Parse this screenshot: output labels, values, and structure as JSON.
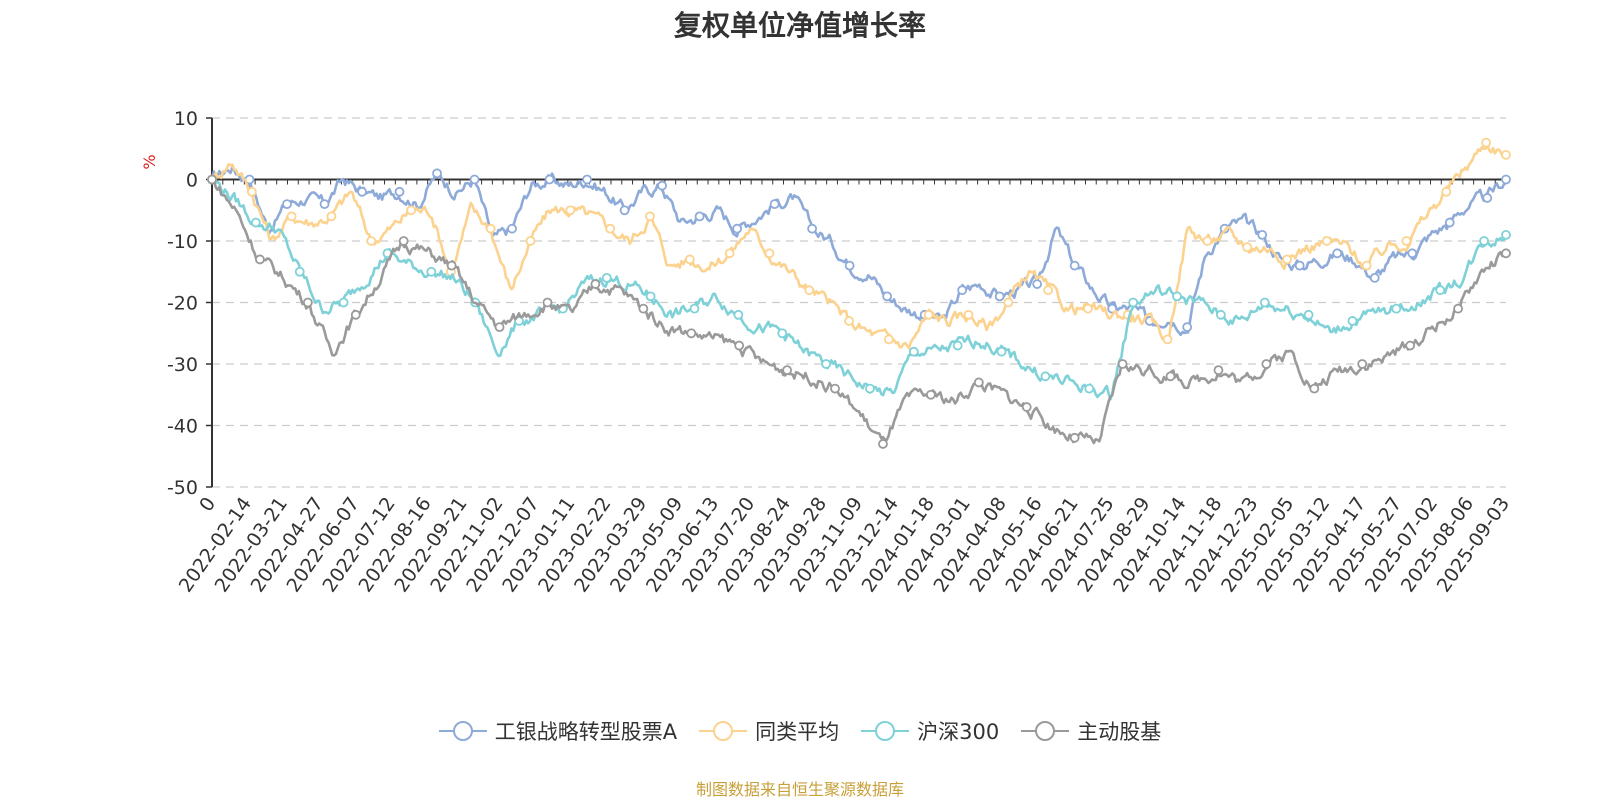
{
  "chart_data": {
    "type": "line",
    "title": "复权单位净值增长率",
    "ylabel": "%",
    "ylim": [
      -50,
      10
    ],
    "yticks": [
      10,
      0,
      -10,
      -20,
      -30,
      -40,
      -50
    ],
    "xlabels": [
      "0",
      "2022-02-14",
      "2022-03-21",
      "2022-04-27",
      "2022-06-07",
      "2022-07-12",
      "2022-08-16",
      "2022-09-21",
      "2022-11-02",
      "2022-12-07",
      "2023-01-11",
      "2023-02-22",
      "2023-03-29",
      "2023-05-09",
      "2023-06-13",
      "2023-07-20",
      "2023-08-24",
      "2023-09-28",
      "2023-11-09",
      "2023-12-14",
      "2024-01-18",
      "2024-03-01",
      "2024-04-08",
      "2024-05-16",
      "2024-06-21",
      "2024-07-25",
      "2024-08-29",
      "2024-10-14",
      "2024-11-18",
      "2024-12-23",
      "2025-02-05",
      "2025-03-12",
      "2025-04-17",
      "2025-05-27",
      "2025-07-02",
      "2025-08-06",
      "2025-09-03"
    ],
    "grid": true,
    "legend_position": "bottom",
    "series": [
      {
        "name": "工银战略转型股票A",
        "color": "#8eaad8",
        "values": [
          0,
          2,
          0,
          -8,
          -4,
          -3,
          -4,
          0,
          -2,
          -3,
          -2,
          -4,
          1,
          -2,
          0,
          -10,
          -8,
          -1,
          0,
          -1,
          0,
          -2,
          -5,
          -2,
          -1,
          -7,
          -6,
          -5,
          -8,
          -6,
          -4,
          -3,
          -8,
          -10,
          -14,
          -15,
          -19,
          -21,
          -22,
          -23,
          -18,
          -17,
          -19,
          -18,
          -17,
          -8,
          -14,
          -18,
          -21,
          -21,
          -23,
          -22,
          -24,
          -12,
          -8,
          -7,
          -9,
          -13,
          -14,
          -13,
          -12,
          -13,
          -16,
          -13,
          -12,
          -9,
          -7,
          -4,
          -3,
          0
        ]
      },
      {
        "name": "同类平均",
        "color": "#fcd28f",
        "values": [
          0,
          3,
          -2,
          -10,
          -6,
          -7,
          -6,
          -2,
          -10,
          -8,
          -5,
          -5,
          -15,
          -5,
          -8,
          -18,
          -10,
          -5,
          -5,
          -6,
          -8,
          -10,
          -6,
          -14,
          -13,
          -14,
          -12,
          -8,
          -12,
          -15,
          -18,
          -20,
          -23,
          -25,
          -26,
          -27,
          -22,
          -23,
          -22,
          -24,
          -20,
          -15,
          -18,
          -21,
          -21,
          -22,
          -22,
          -23,
          -26,
          -8,
          -10,
          -9,
          -11,
          -11,
          -13,
          -11,
          -10,
          -11,
          -14,
          -11,
          -10,
          -6,
          -2,
          2,
          6,
          4
        ]
      },
      {
        "name": "沪深300",
        "color": "#7fd1d8",
        "values": [
          0,
          -3,
          -7,
          -8,
          -15,
          -21,
          -20,
          -16,
          -12,
          -14,
          -15,
          -16,
          -20,
          -28,
          -23,
          -22,
          -21,
          -17,
          -16,
          -17,
          -19,
          -22,
          -21,
          -19,
          -22,
          -24,
          -25,
          -28,
          -30,
          -32,
          -34,
          -35,
          -28,
          -28,
          -27,
          -26,
          -28,
          -30,
          -32,
          -33,
          -34,
          -35,
          -20,
          -18,
          -19,
          -20,
          -22,
          -23,
          -20,
          -21,
          -22,
          -25,
          -23,
          -22,
          -21,
          -20,
          -18,
          -16,
          -10,
          -9
        ]
      },
      {
        "name": "主动股基",
        "color": "#9a9a9a",
        "values": [
          0,
          -5,
          -13,
          -16,
          -20,
          -28,
          -22,
          -16,
          -10,
          -12,
          -14,
          -20,
          -24,
          -22,
          -20,
          -22,
          -17,
          -18,
          -21,
          -24,
          -25,
          -26,
          -27,
          -30,
          -31,
          -32,
          -34,
          -38,
          -43,
          -36,
          -35,
          -36,
          -33,
          -35,
          -37,
          -40,
          -42,
          -43,
          -30,
          -31,
          -32,
          -33,
          -31,
          -33,
          -30,
          -28,
          -34,
          -31,
          -30,
          -29,
          -27,
          -24,
          -21,
          -15,
          -12
        ]
      }
    ]
  },
  "source_note": "制图数据来自恒生聚源数据库"
}
